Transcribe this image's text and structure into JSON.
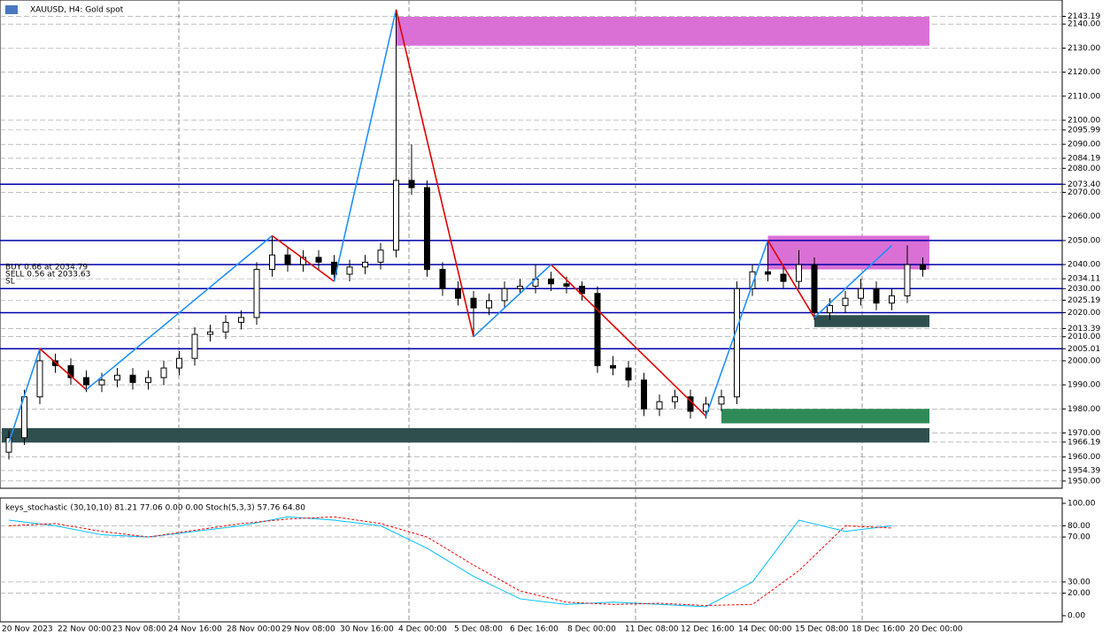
{
  "header": {
    "title": "XAUUSD, H4:  Gold spot"
  },
  "chart_data": {
    "type": "candlestick",
    "ylim": [
      1947,
      2150
    ],
    "yticks": [
      {
        "value": 2143.19,
        "label": "2143.19"
      },
      {
        "value": 2140,
        "label": "2140.00"
      },
      {
        "value": 2130,
        "label": "2130.00"
      },
      {
        "value": 2120,
        "label": "2120.00"
      },
      {
        "value": 2110,
        "label": "2110.00"
      },
      {
        "value": 2100,
        "label": "2100.00"
      },
      {
        "value": 2095.99,
        "label": "2095.99"
      },
      {
        "value": 2090,
        "label": "2090.00"
      },
      {
        "value": 2084.19,
        "label": "2084.19"
      },
      {
        "value": 2080,
        "label": "2080.00"
      },
      {
        "value": 2073.4,
        "label": "2073.40"
      },
      {
        "value": 2070,
        "label": "2070.00"
      },
      {
        "value": 2060,
        "label": "2060.00"
      },
      {
        "value": 2050,
        "label": "2050.00"
      },
      {
        "value": 2040,
        "label": "2040.00"
      },
      {
        "value": 2034.11,
        "label": "2034.11"
      },
      {
        "value": 2030,
        "label": "2030.00"
      },
      {
        "value": 2025.19,
        "label": "2025.19"
      },
      {
        "value": 2020,
        "label": "2020.00"
      },
      {
        "value": 2013.39,
        "label": "2013.39"
      },
      {
        "value": 2010,
        "label": "2010.00"
      },
      {
        "value": 2005.01,
        "label": "2005.01"
      },
      {
        "value": 2000,
        "label": "2000.00"
      },
      {
        "value": 1990,
        "label": "1990.00"
      },
      {
        "value": 1980,
        "label": "1980.00"
      },
      {
        "value": 1970,
        "label": "1970.00"
      },
      {
        "value": 1966.19,
        "label": "1966.19"
      },
      {
        "value": 1960,
        "label": "1960.00"
      },
      {
        "value": 1954.39,
        "label": "1954.39"
      },
      {
        "value": 1950,
        "label": "1950.00"
      }
    ],
    "categories": [
      "20 Nov 2023",
      "22 Nov 00:00",
      "23 Nov 08:00",
      "24 Nov 16:00",
      "28 Nov 00:00",
      "29 Nov 08:00",
      "30 Nov 16:00",
      "4 Dec 00:00",
      "5 Dec 08:00",
      "6 Dec 16:00",
      "8 Dec 00:00",
      "11 Dec 08:00",
      "12 Dec 16:00",
      "14 Dec 00:00",
      "15 Dec 08:00",
      "18 Dec 16:00",
      "20 Dec 00:00"
    ],
    "candles": [
      [
        1962,
        1971,
        1959,
        1968
      ],
      [
        1968,
        1988,
        1965,
        1985
      ],
      [
        1985,
        2005,
        1982,
        2000
      ],
      [
        2000,
        2003,
        1995,
        1998
      ],
      [
        1998,
        2001,
        1990,
        1993
      ],
      [
        1993,
        1996,
        1987,
        1990
      ],
      [
        1990,
        1995,
        1987,
        1992
      ],
      [
        1992,
        1997,
        1989,
        1994
      ],
      [
        1994,
        1997,
        1988,
        1991
      ],
      [
        1991,
        1996,
        1988,
        1993
      ],
      [
        1993,
        2000,
        1990,
        1997
      ],
      [
        1997,
        2004,
        1994,
        2001
      ],
      [
        2001,
        2014,
        1998,
        2011
      ],
      [
        2011,
        2015,
        2008,
        2012
      ],
      [
        2012,
        2019,
        2009,
        2016
      ],
      [
        2016,
        2021,
        2013,
        2018
      ],
      [
        2018,
        2041,
        2015,
        2038
      ],
      [
        2038,
        2052,
        2035,
        2044
      ],
      [
        2044,
        2047,
        2037,
        2040
      ],
      [
        2040,
        2046,
        2037,
        2043
      ],
      [
        2043,
        2046,
        2038,
        2041
      ],
      [
        2041,
        2044,
        2033,
        2036
      ],
      [
        2036,
        2042,
        2033,
        2039
      ],
      [
        2039,
        2044,
        2036,
        2041
      ],
      [
        2041,
        2049,
        2038,
        2046
      ],
      [
        2046,
        2146,
        2043,
        2075
      ],
      [
        2075,
        2090,
        2069,
        2072
      ],
      [
        2072,
        2075,
        2035,
        2038
      ],
      [
        2038,
        2041,
        2027,
        2030
      ],
      [
        2030,
        2033,
        2023,
        2026
      ],
      [
        2026,
        2029,
        2010,
        2022
      ],
      [
        2022,
        2028,
        2019,
        2025
      ],
      [
        2025,
        2033,
        2022,
        2030
      ],
      [
        2030,
        2034,
        2028,
        2031
      ],
      [
        2031,
        2040,
        2028,
        2034
      ],
      [
        2034,
        2037,
        2029,
        2032
      ],
      [
        2032,
        2035,
        2028,
        2031
      ],
      [
        2031,
        2033,
        2025,
        2028
      ],
      [
        2028,
        2031,
        1995,
        1998
      ],
      [
        1998,
        2002,
        1994,
        1997
      ],
      [
        1997,
        2000,
        1989,
        1992
      ],
      [
        1992,
        1995,
        1977,
        1980
      ],
      [
        1980,
        1986,
        1977,
        1983
      ],
      [
        1983,
        1988,
        1980,
        1985
      ],
      [
        1985,
        1988,
        1976,
        1979
      ],
      [
        1979,
        1985,
        1976,
        1982
      ],
      [
        1982,
        1988,
        1979,
        1985
      ],
      [
        1985,
        2033,
        1982,
        2030
      ],
      [
        2030,
        2040,
        2027,
        2037
      ],
      [
        2037,
        2050,
        2033,
        2036
      ],
      [
        2036,
        2039,
        2030,
        2033
      ],
      [
        2033,
        2046,
        2030,
        2040
      ],
      [
        2040,
        2043,
        2017,
        2020
      ],
      [
        2020,
        2026,
        2017,
        2023
      ],
      [
        2023,
        2029,
        2020,
        2026
      ],
      [
        2026,
        2034,
        2023,
        2030
      ],
      [
        2030,
        2033,
        2021,
        2024
      ],
      [
        2024,
        2030,
        2021,
        2027
      ],
      [
        2027,
        2048,
        2024,
        2040
      ],
      [
        2040,
        2043,
        2035,
        2038
      ]
    ],
    "levels": [
      2073.4,
      2050,
      2040,
      2030,
      2020,
      2005.01
    ],
    "zigzag": {
      "index": [
        0,
        2,
        5,
        17,
        21,
        25,
        30,
        35,
        45,
        49,
        52,
        57
      ],
      "values": [
        1966,
        2005,
        1988,
        2052,
        2033,
        2146,
        2010,
        2040,
        1977,
        2050,
        2018,
        2048
      ]
    },
    "zones": [
      {
        "from": 25,
        "top": 2143,
        "bottom": 2131,
        "color": "#da70d6"
      },
      {
        "from": 49,
        "top": 2052,
        "bottom": 2038,
        "color": "#da70d6"
      },
      {
        "from": 0,
        "top": 1972,
        "bottom": 1966,
        "color": "#2f4f4f"
      },
      {
        "from": 46,
        "top": 1980,
        "bottom": 1974,
        "color": "#2e8b57"
      },
      {
        "from": 52,
        "top": 2019,
        "bottom": 2014,
        "color": "#2f4f4f"
      }
    ],
    "trades": [
      "BUY 0.66 at 2034.79",
      "SELL 0.56 at 2033.63",
      "SL"
    ],
    "indicator": {
      "label": "keys_stochastic (30,10,10) 81.21 77.06 0.00 0.00 Stoch(5,3,3) 57.76 64.80",
      "ylim": [
        0,
        100
      ],
      "yticks": [
        {
          "value": 100,
          "label": "100.00"
        },
        {
          "value": 80,
          "label": "80.00"
        },
        {
          "value": 70,
          "label": "70.00"
        },
        {
          "value": 30,
          "label": "30.00"
        },
        {
          "value": 20,
          "label": "20.00"
        },
        {
          "value": 0,
          "label": "0.00"
        }
      ],
      "step": 3,
      "series": [
        {
          "color": "#00bfff",
          "values": [
            85,
            80,
            72,
            70,
            75,
            80,
            88,
            85,
            80,
            60,
            35,
            15,
            10,
            12,
            10,
            8,
            30,
            85,
            75,
            80
          ]
        },
        {
          "color": "#ff0000",
          "values": [
            80,
            82,
            75,
            70,
            76,
            82,
            86,
            88,
            82,
            70,
            45,
            22,
            12,
            10,
            11,
            9,
            10,
            40,
            80,
            78
          ]
        }
      ]
    }
  }
}
